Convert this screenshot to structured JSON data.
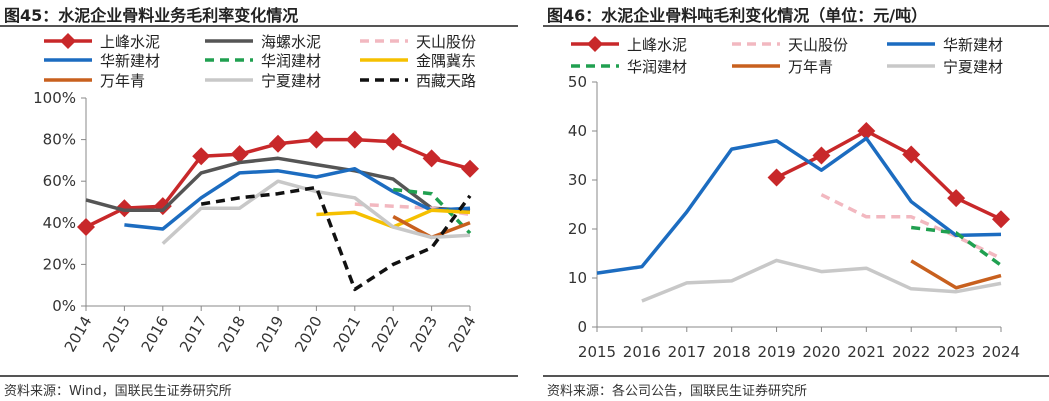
{
  "chart_data": [
    {
      "type": "line",
      "figure_label": "图45",
      "title": "图45：水泥企业骨料业务毛利率变化情况",
      "source": "资料来源：Wind，国联民生证券研究所",
      "x": [
        "2014",
        "2015",
        "2016",
        "2017",
        "2018",
        "2019",
        "2020",
        "2021",
        "2022",
        "2023",
        "2024"
      ],
      "y_ticks": [
        "0%",
        "20%",
        "40%",
        "60%",
        "80%",
        "100%"
      ],
      "ylim": [
        0,
        100
      ],
      "series": [
        {
          "name": "上峰水泥",
          "color": "#c8282a",
          "style": "solid-diamond",
          "values": [
            38,
            47,
            48,
            72,
            73,
            78,
            80,
            80,
            79,
            71,
            66
          ]
        },
        {
          "name": "海螺水泥",
          "color": "#555555",
          "style": "solid",
          "values": [
            51,
            46,
            46,
            64,
            69,
            71,
            68,
            65,
            61,
            47,
            46
          ]
        },
        {
          "name": "天山股份",
          "color": "#f2b8c0",
          "style": "dashed",
          "values": [
            null,
            null,
            null,
            null,
            null,
            null,
            null,
            49,
            48,
            47,
            44
          ]
        },
        {
          "name": "华新建材",
          "color": "#1c6cc0",
          "style": "solid",
          "values": [
            null,
            39,
            37,
            52,
            64,
            65,
            62,
            66,
            55,
            46,
            47
          ]
        },
        {
          "name": "华润建材",
          "color": "#20a050",
          "style": "dashed",
          "values": [
            null,
            null,
            null,
            null,
            null,
            null,
            null,
            null,
            56,
            54,
            35
          ]
        },
        {
          "name": "金隅冀东",
          "color": "#f5c000",
          "style": "solid",
          "values": [
            null,
            null,
            null,
            null,
            null,
            null,
            44,
            45,
            38,
            46,
            45
          ]
        },
        {
          "name": "万年青",
          "color": "#c8601e",
          "style": "solid",
          "values": [
            null,
            null,
            null,
            null,
            null,
            null,
            null,
            null,
            43,
            33,
            40
          ]
        },
        {
          "name": "宁夏建材",
          "color": "#c8c8c8",
          "style": "solid",
          "values": [
            null,
            null,
            30,
            47,
            47,
            60,
            55,
            52,
            38,
            33,
            34
          ]
        },
        {
          "name": "西藏天路",
          "color": "#111111",
          "style": "dashed",
          "values": [
            null,
            null,
            null,
            49,
            52,
            54,
            57,
            8,
            20,
            28,
            53
          ]
        }
      ]
    },
    {
      "type": "line",
      "figure_label": "图46",
      "title": "图46：水泥企业骨料吨毛利变化情况（单位：元/吨）",
      "source": "资料来源：各公司公告，国联民生证券研究所",
      "x": [
        "2015",
        "2016",
        "2017",
        "2018",
        "2019",
        "2020",
        "2021",
        "2022",
        "2023",
        "2024"
      ],
      "y_ticks": [
        "0",
        "10",
        "20",
        "30",
        "40",
        "50"
      ],
      "ylim": [
        0,
        50
      ],
      "series": [
        {
          "name": "上峰水泥",
          "color": "#c8282a",
          "style": "solid-diamond",
          "values": [
            null,
            null,
            null,
            null,
            30.5,
            35,
            40,
            35.2,
            26.3,
            22
          ]
        },
        {
          "name": "天山股份",
          "color": "#f2b8c0",
          "style": "dashed",
          "values": [
            null,
            null,
            null,
            null,
            null,
            27,
            22.5,
            22.5,
            18.5,
            14
          ]
        },
        {
          "name": "华新建材",
          "color": "#1c6cc0",
          "style": "solid",
          "values": [
            11,
            12.3,
            23.5,
            36.3,
            38,
            32,
            38.5,
            25.6,
            18.7,
            18.9
          ]
        },
        {
          "name": "华润建材",
          "color": "#20a050",
          "style": "dashed",
          "values": [
            null,
            null,
            null,
            null,
            null,
            null,
            null,
            20.3,
            19.2,
            12.6
          ]
        },
        {
          "name": "万年青",
          "color": "#c8601e",
          "style": "solid",
          "values": [
            null,
            null,
            null,
            null,
            null,
            null,
            null,
            13.5,
            8,
            10.5
          ]
        },
        {
          "name": "宁夏建材",
          "color": "#c8c8c8",
          "style": "solid",
          "values": [
            null,
            5.3,
            9,
            9.4,
            13.6,
            11.3,
            12,
            7.8,
            7.2,
            8.9
          ]
        }
      ]
    }
  ]
}
